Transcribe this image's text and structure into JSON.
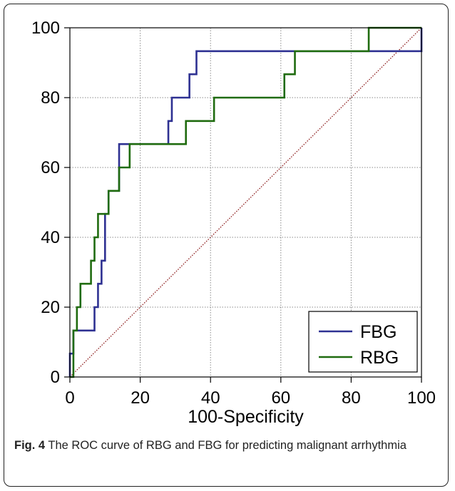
{
  "figure": {
    "caption_label": "Fig. 4",
    "caption_text": "The ROC curve of RBG and FBG for predicting malignant arrhythmia"
  },
  "chart_data": {
    "type": "line",
    "xlabel": "100-Specificity",
    "ylabel": "",
    "xlim": [
      0,
      100
    ],
    "ylim": [
      0,
      100
    ],
    "xticks": [
      0,
      20,
      40,
      60,
      80,
      100
    ],
    "yticks": [
      0,
      20,
      40,
      60,
      80,
      100
    ],
    "grid": true,
    "legend_position": "bottom-right",
    "reference_line": {
      "x": [
        0,
        100
      ],
      "y": [
        0,
        100
      ],
      "color": "#8b1a1a",
      "style": "dotted"
    },
    "series": [
      {
        "name": "FBG",
        "color": "#2e3192",
        "x": [
          0,
          0,
          1,
          1,
          7,
          7,
          8,
          8,
          9,
          9,
          10,
          10,
          11,
          11,
          14,
          14,
          28,
          28,
          29,
          29,
          34,
          34,
          36,
          36,
          100,
          100
        ],
        "y": [
          0,
          6.7,
          6.7,
          13.3,
          13.3,
          20,
          20,
          26.7,
          26.7,
          33.3,
          33.3,
          46.7,
          46.7,
          53.3,
          53.3,
          66.7,
          66.7,
          73.3,
          73.3,
          80,
          80,
          86.7,
          86.7,
          93.3,
          93.3,
          100
        ]
      },
      {
        "name": "RBG",
        "color": "#1f6b0f",
        "x": [
          0,
          1,
          1,
          2,
          2,
          3,
          3,
          6,
          6,
          7,
          7,
          8,
          8,
          11,
          11,
          14,
          14,
          17,
          17,
          33,
          33,
          41,
          41,
          61,
          61,
          64,
          64,
          85,
          85,
          100
        ],
        "y": [
          0,
          0,
          13.3,
          13.3,
          20,
          20,
          26.7,
          26.7,
          33.3,
          33.3,
          40,
          40,
          46.7,
          46.7,
          53.3,
          53.3,
          60,
          60,
          66.7,
          66.7,
          73.3,
          73.3,
          80,
          80,
          86.7,
          86.7,
          93.3,
          93.3,
          100,
          100
        ]
      }
    ]
  }
}
